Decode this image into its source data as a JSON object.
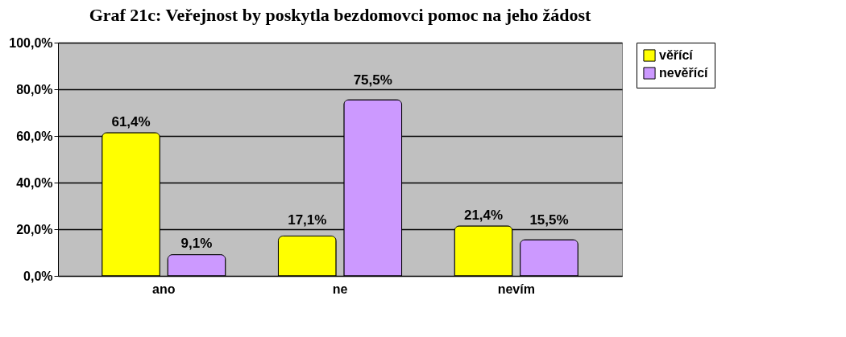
{
  "chart_data": {
    "type": "bar",
    "title": "Graf 21c: Veřejnost by poskytla bezdomovci pomoc na jeho žádost",
    "categories": [
      "ano",
      "ne",
      "nevím"
    ],
    "series": [
      {
        "name": "věřící",
        "color": "#ffff00",
        "values": [
          61.4,
          17.1,
          21.4
        ],
        "value_labels": [
          "61,4%",
          "17,1%",
          "21,4%"
        ]
      },
      {
        "name": "nevěřící",
        "color": "#cc99ff",
        "values": [
          9.1,
          75.5,
          15.5
        ],
        "value_labels": [
          "9,1%",
          "75,5%",
          "15,5%"
        ]
      }
    ],
    "ylim": [
      0,
      100
    ],
    "yticks": [
      {
        "value": 0,
        "label": "0,0%"
      },
      {
        "value": 20,
        "label": "20,0%"
      },
      {
        "value": 40,
        "label": "40,0%"
      },
      {
        "value": 60,
        "label": "60,0%"
      },
      {
        "value": 80,
        "label": "80,0%"
      },
      {
        "value": 100,
        "label": "100,0%"
      }
    ],
    "grid": "y",
    "legend": "right"
  }
}
